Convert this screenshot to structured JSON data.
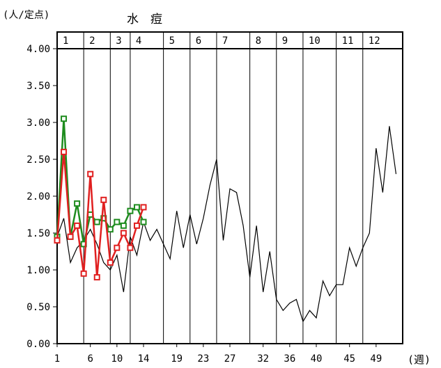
{
  "chart_data": {
    "type": "line",
    "title": "水　痘",
    "ylabel": "(人/定点)",
    "xlabel_unit": "(週)",
    "ylim": [
      0,
      4
    ],
    "y_ticks": [
      "0.00",
      "0.50",
      "1.00",
      "1.50",
      "2.00",
      "2.50",
      "3.00",
      "3.50",
      "4.00"
    ],
    "x_range": [
      1,
      53
    ],
    "x_ticks": [
      "1",
      "6",
      "10",
      "14",
      "19",
      "23",
      "27",
      "32",
      "36",
      "40",
      "45",
      "49"
    ],
    "x_tick_values": [
      1,
      6,
      10,
      14,
      19,
      23,
      27,
      32,
      36,
      40,
      45,
      49
    ],
    "months": [
      {
        "label": "1",
        "start": 1,
        "end": 5
      },
      {
        "label": "2",
        "start": 5,
        "end": 9
      },
      {
        "label": "3",
        "start": 9,
        "end": 12
      },
      {
        "label": "4",
        "start": 12,
        "end": 17
      },
      {
        "label": "5",
        "start": 17,
        "end": 21
      },
      {
        "label": "6",
        "start": 21,
        "end": 25
      },
      {
        "label": "7",
        "start": 25,
        "end": 30
      },
      {
        "label": "8",
        "start": 30,
        "end": 34
      },
      {
        "label": "9",
        "start": 34,
        "end": 38
      },
      {
        "label": "10",
        "start": 38,
        "end": 43
      },
      {
        "label": "11",
        "start": 43,
        "end": 47
      },
      {
        "label": "12",
        "start": 47,
        "end": 53
      }
    ],
    "series": [
      {
        "color": "#000000",
        "stroke_width": 1.2,
        "marker": "none",
        "x": [
          1,
          2,
          3,
          4,
          5,
          6,
          7,
          8,
          9,
          10,
          11,
          12,
          13,
          14,
          15,
          16,
          17,
          18,
          19,
          20,
          21,
          22,
          23,
          24,
          25,
          26,
          27,
          28,
          29,
          30,
          31,
          32,
          33,
          34,
          35,
          36,
          37,
          38,
          39,
          40,
          41,
          42,
          43,
          44,
          45,
          46,
          47,
          48,
          49,
          50,
          51,
          52
        ],
        "values": [
          1.45,
          1.7,
          1.1,
          1.3,
          1.4,
          1.55,
          1.35,
          1.1,
          1.0,
          1.2,
          0.7,
          1.45,
          1.2,
          1.65,
          1.4,
          1.55,
          1.35,
          1.15,
          1.8,
          1.3,
          1.75,
          1.35,
          1.7,
          2.15,
          2.5,
          1.4,
          2.1,
          2.05,
          1.6,
          0.9,
          1.6,
          0.7,
          1.25,
          0.6,
          0.45,
          0.55,
          0.6,
          0.3,
          0.45,
          0.35,
          0.85,
          0.65,
          0.8,
          0.8,
          1.3,
          1.05,
          1.3,
          1.5,
          2.65,
          2.05,
          2.95,
          2.3
        ]
      },
      {
        "color": "#1e8c1e",
        "stroke_width": 2.5,
        "marker": "square",
        "x": [
          1,
          2,
          3,
          4,
          5,
          6,
          7,
          8,
          9,
          10,
          11,
          12,
          13,
          14
        ],
        "values": [
          1.45,
          3.05,
          1.45,
          1.9,
          1.35,
          1.75,
          1.65,
          1.7,
          1.55,
          1.65,
          1.6,
          1.8,
          1.85,
          1.65
        ]
      },
      {
        "color": "#e02020",
        "stroke_width": 2.5,
        "marker": "square",
        "x": [
          1,
          2,
          3,
          4,
          5,
          6,
          7,
          8,
          9,
          10,
          11,
          12,
          13,
          14
        ],
        "values": [
          1.4,
          2.6,
          1.45,
          1.6,
          0.95,
          2.3,
          0.9,
          1.95,
          1.1,
          1.3,
          1.5,
          1.3,
          1.6,
          1.85
        ]
      }
    ]
  }
}
